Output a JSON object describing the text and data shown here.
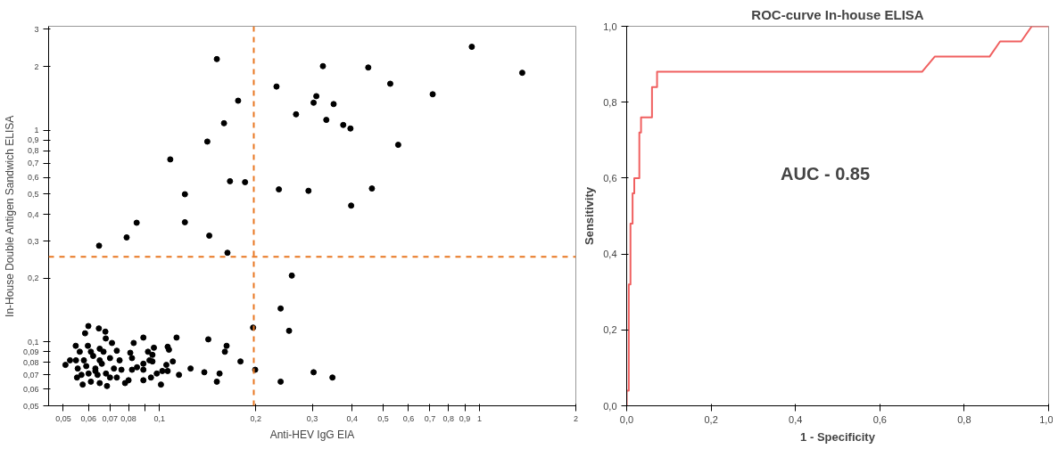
{
  "chart_data": [
    {
      "type": "scatter",
      "xlabel": "Anti-HEV IgG EIA",
      "ylabel": "In-House Double Antigen Sandwich ELISA",
      "log": "xy",
      "grid": false,
      "marker": "circle",
      "xlim": [
        0.045,
        2
      ],
      "ylim": [
        0.05,
        3.1
      ],
      "xticks": [
        {
          "value": 0.05,
          "label": "0,05"
        },
        {
          "value": 0.06,
          "label": "0,06"
        },
        {
          "value": 0.07,
          "label": "0,07"
        },
        {
          "value": 0.08,
          "label": "0,08"
        },
        {
          "value": 0.09,
          "label": null
        },
        {
          "value": 0.1,
          "label": "0,1"
        },
        {
          "value": 0.2,
          "label": "0,2"
        },
        {
          "value": 0.3,
          "label": "0,3"
        },
        {
          "value": 0.4,
          "label": "0,4"
        },
        {
          "value": 0.5,
          "label": "0,5"
        },
        {
          "value": 0.6,
          "label": "0,6"
        },
        {
          "value": 0.7,
          "label": "0,7"
        },
        {
          "value": 0.8,
          "label": "0,8"
        },
        {
          "value": 0.9,
          "label": "0,9"
        },
        1,
        2
      ],
      "yticks": [
        {
          "value": 0.05,
          "label": "0,05"
        },
        {
          "value": 0.06,
          "label": "0,06"
        },
        {
          "value": 0.07,
          "label": "0,07"
        },
        {
          "value": 0.08,
          "label": "0,08"
        },
        {
          "value": 0.09,
          "label": "0,09"
        },
        {
          "value": 0.1,
          "label": "0,1"
        },
        {
          "value": 0.2,
          "label": "0,2"
        },
        {
          "value": 0.3,
          "label": "0,3"
        },
        {
          "value": 0.4,
          "label": "0,4"
        },
        {
          "value": 0.5,
          "label": "0,5"
        },
        {
          "value": 0.6,
          "label": "0,6"
        },
        {
          "value": 0.7,
          "label": "0,7"
        },
        {
          "value": 0.8,
          "label": "0,8"
        },
        {
          "value": 0.9,
          "label": "0,9"
        },
        1,
        2,
        3
      ],
      "ref_lines": [
        {
          "axis": "x",
          "value": 0.197,
          "label": null,
          "color": "#e87722",
          "line_style": "dashed"
        },
        {
          "axis": "y",
          "value": 0.253,
          "label": null,
          "color": "#e87722",
          "line_style": "dashed"
        }
      ],
      "series": [
        {
          "color": "#000000",
          "x": [
            0.151,
            0.324,
            0.449,
            0.946,
            1.36,
            0.232,
            0.526,
            0.714,
            0.309,
            0.303,
            0.35,
            0.176,
            0.267,
            0.332,
            0.159,
            0.375,
            0.395,
            0.141,
            0.557,
            0.108,
            0.166,
            0.185,
            0.12,
            0.236,
            0.292,
            0.461,
            0.397,
            0.0848,
            0.12,
            0.0789,
            0.143,
            0.0647,
            0.163,
            0.259,
            0.239,
            0.196,
            0.254,
            0.199,
            0.303,
            0.347,
            0.239,
            0.179,
            0.142,
            0.162,
            0.16,
            0.154,
            0.151,
            0.138,
            0.125,
            0.113,
            0.11,
            0.107,
            0.106,
            0.105,
            0.106,
            0.115,
            0.102,
            0.101,
            0.098,
            0.096,
            0.095,
            0.093,
            0.095,
            0.092,
            0.089,
            0.089,
            0.085,
            0.089,
            0.094,
            0.089,
            0.083,
            0.081,
            0.082,
            0.082,
            0.08,
            0.078,
            0.0508,
            0.0599,
            0.0646,
            0.0677,
            0.0585,
            0.0679,
            0.071,
            0.0547,
            0.0597,
            0.065,
            0.0735,
            0.0563,
            0.0668,
            0.0548,
            0.058,
            0.062,
            0.065,
            0.07,
            0.075,
            0.0555,
            0.059,
            0.063,
            0.066,
            0.072,
            0.076,
            0.057,
            0.06,
            0.064,
            0.068,
            0.07,
            0.0552,
            0.0575,
            0.061,
            0.065,
            0.0685,
            0.0735,
            0.063,
            0.061,
            0.0525
          ],
          "values": [
            2.17,
            2.01,
            1.98,
            2.48,
            1.87,
            1.61,
            1.66,
            1.48,
            1.45,
            1.35,
            1.33,
            1.38,
            1.19,
            1.12,
            1.08,
            1.06,
            1.02,
            0.885,
            0.854,
            0.729,
            0.575,
            0.569,
            0.499,
            0.526,
            0.518,
            0.531,
            0.441,
            0.366,
            0.368,
            0.312,
            0.318,
            0.285,
            0.264,
            0.206,
            0.144,
            0.117,
            0.113,
            0.074,
            0.072,
            0.068,
            0.065,
            0.081,
            0.103,
            0.096,
            0.09,
            0.071,
            0.065,
            0.072,
            0.075,
            0.105,
            0.081,
            0.092,
            0.095,
            0.078,
            0.073,
            0.07,
            0.073,
            0.063,
            0.071,
            0.094,
            0.087,
            0.082,
            0.081,
            0.09,
            0.105,
            0.079,
            0.076,
            0.074,
            0.068,
            0.066,
            0.099,
            0.089,
            0.084,
            0.074,
            0.066,
            0.064,
            0.078,
            0.119,
            0.116,
            0.112,
            0.11,
            0.104,
            0.099,
            0.096,
            0.096,
            0.093,
            0.091,
            0.09,
            0.09,
            0.082,
            0.082,
            0.086,
            0.082,
            0.084,
            0.082,
            0.075,
            0.077,
            0.075,
            0.079,
            0.075,
            0.074,
            0.07,
            0.071,
            0.07,
            0.071,
            0.068,
            0.068,
            0.063,
            0.065,
            0.064,
            0.062,
            0.068,
            0.073,
            0.09,
            0.082
          ]
        }
      ]
    },
    {
      "type": "line",
      "title": "ROC-curve In-house ELISA",
      "xlabel": "1 - Specificity",
      "ylabel": "Sensitivity",
      "grid": false,
      "marker": "none",
      "line_style": "solid",
      "annotations": [
        "AUC - 0.85"
      ],
      "xlim": [
        0,
        1
      ],
      "ylim": [
        0,
        1
      ],
      "xticks": [
        {
          "value": 0,
          "label": "0,0"
        },
        {
          "value": 0.2,
          "label": "0,2"
        },
        {
          "value": 0.4,
          "label": "0,4"
        },
        {
          "value": 0.6,
          "label": "0,6"
        },
        {
          "value": 0.8,
          "label": "0,8"
        },
        {
          "value": 1,
          "label": "1,0"
        }
      ],
      "yticks": [
        {
          "value": 0,
          "label": "0,0"
        },
        {
          "value": 0.2,
          "label": "0,2"
        },
        {
          "value": 0.4,
          "label": "0,4"
        },
        {
          "value": 0.6,
          "label": "0,6"
        },
        {
          "value": 0.8,
          "label": "0,8"
        },
        {
          "value": 1,
          "label": "1,0"
        }
      ],
      "series": [
        {
          "color": "#f06060",
          "x": [
            0,
            0,
            0.005,
            0.005,
            0.009,
            0.009,
            0.014,
            0.014,
            0.018,
            0.018,
            0.03,
            0.03,
            0.034,
            0.034,
            0.06,
            0.06,
            0.072,
            0.072,
            0.7,
            0.73,
            0.86,
            0.885,
            0.935,
            0.96,
            1
          ],
          "values": [
            0,
            0.04,
            0.04,
            0.32,
            0.32,
            0.48,
            0.48,
            0.56,
            0.56,
            0.6,
            0.6,
            0.72,
            0.72,
            0.76,
            0.76,
            0.84,
            0.84,
            0.88,
            0.88,
            0.92,
            0.92,
            0.96,
            0.96,
            1,
            1
          ]
        }
      ]
    }
  ]
}
